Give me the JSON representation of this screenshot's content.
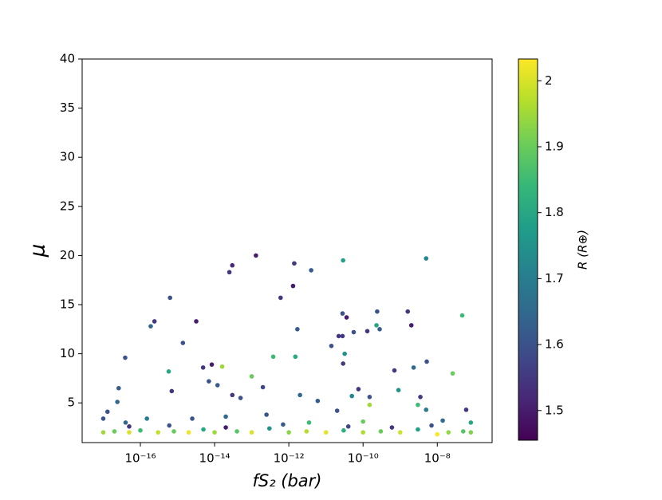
{
  "chart_data": {
    "type": "scatter",
    "xlabel": "fS₂ (bar)",
    "ylabel": "μ",
    "colorbar_label": "R (R⊕)",
    "x_scale": "log",
    "colormap": "viridis",
    "xlim": [
      2.7e-18,
      3e-07
    ],
    "ylim": [
      0.96,
      40
    ],
    "xticks": [
      {
        "value": 1e-16,
        "label": "10⁻¹⁶"
      },
      {
        "value": 1e-14,
        "label": "10⁻¹⁴"
      },
      {
        "value": 1e-12,
        "label": "10⁻¹²"
      },
      {
        "value": 1e-10,
        "label": "10⁻¹⁰"
      },
      {
        "value": 1e-08,
        "label": "10⁻⁸"
      }
    ],
    "yticks": [
      5,
      10,
      15,
      20,
      25,
      30,
      35,
      40
    ],
    "clim": [
      1.455,
      2.033
    ],
    "cticks": [
      1.5,
      1.6,
      1.7,
      1.8,
      1.9,
      2.0
    ],
    "x": [
      1.3e-13,
      3e-14,
      2.5e-14,
      1.4e-12,
      1.3e-12,
      2.9e-11,
      5e-09,
      4e-12,
      6e-13,
      6.3e-16,
      2.4e-16,
      1.9e-16,
      3.2e-15,
      1.4e-15,
      3.9e-17,
      5.8e-16,
      4.9e-15,
      8.4e-15,
      1.6e-14,
      1e-13,
      7e-16,
      2.6e-17,
      2.4e-17,
      1.3e-17,
      1.7e-12,
      3.8e-13,
      1.5e-12,
      2.8e-11,
      3.6e-11,
      2.2e-11,
      2.8e-11,
      5.6e-11,
      1.3e-10,
      2.4e-10,
      2.8e-10,
      2.3e-10,
      3.2e-11,
      2.9e-11,
      1.4e-11,
      1.6e-09,
      2e-09,
      7e-10,
      2.3e-09,
      5.2e-09,
      4.7e-08,
      2.6e-08,
      7e-15,
      1.2e-14,
      3e-14,
      5e-14,
      2e-13,
      2e-12,
      6e-12,
      7.5e-11,
      5e-11,
      1.5e-10,
      9e-10,
      3.5e-09,
      6e-08,
      5e-09,
      1e-10,
      2e-11,
      3.5e-12,
      2.5e-13,
      2e-14,
      2.5e-15,
      1.5e-16,
      4e-17,
      1e-17,
      1.4e-08,
      8e-08,
      3e-09,
      1.5e-10,
      1e-17,
      2e-17,
      5e-17,
      1e-16,
      3e-16,
      8e-16,
      2e-15,
      5e-15,
      1e-14,
      4e-14,
      1e-13,
      3e-13,
      1e-12,
      3e-12,
      1e-11,
      3e-11,
      1e-10,
      3e-10,
      1e-09,
      3e-09,
      1e-08,
      2e-08,
      5e-08,
      8e-08,
      5e-17,
      6e-16,
      2e-14,
      7e-13,
      4e-11,
      6e-10,
      7e-09
    ],
    "values": [
      20.0,
      19.0,
      18.3,
      19.2,
      16.9,
      19.5,
      19.7,
      18.5,
      15.7,
      15.7,
      13.3,
      12.8,
      13.3,
      11.1,
      9.6,
      8.2,
      8.6,
      8.9,
      8.7,
      7.7,
      6.2,
      6.5,
      5.1,
      4.1,
      12.5,
      9.7,
      9.7,
      14.1,
      13.7,
      11.8,
      11.8,
      12.2,
      12.3,
      14.3,
      12.5,
      12.9,
      10.0,
      9.0,
      10.8,
      14.3,
      12.9,
      8.3,
      8.6,
      9.2,
      13.9,
      8.0,
      7.2,
      6.8,
      5.8,
      5.5,
      6.6,
      5.8,
      5.2,
      6.4,
      5.7,
      5.6,
      6.3,
      5.6,
      4.3,
      4.3,
      3.1,
      4.2,
      3.0,
      3.8,
      3.6,
      3.4,
      3.4,
      3.0,
      3.4,
      3.2,
      3.0,
      4.8,
      4.8,
      2.0,
      2.1,
      2.0,
      2.2,
      2.0,
      2.1,
      2.0,
      2.3,
      2.0,
      2.1,
      2.0,
      2.4,
      2.0,
      2.1,
      2.0,
      2.2,
      2.0,
      2.1,
      2.0,
      2.3,
      1.8,
      2.0,
      2.1,
      2.0,
      2.6,
      2.7,
      2.5,
      2.8,
      2.6,
      2.5,
      2.7
    ],
    "color_values": [
      1.5,
      1.52,
      1.55,
      1.55,
      1.5,
      1.78,
      1.72,
      1.62,
      1.55,
      1.6,
      1.55,
      1.65,
      1.5,
      1.6,
      1.6,
      1.8,
      1.55,
      1.5,
      1.95,
      1.9,
      1.55,
      1.62,
      1.65,
      1.6,
      1.62,
      1.85,
      1.8,
      1.6,
      1.5,
      1.55,
      1.55,
      1.6,
      1.55,
      1.6,
      1.62,
      1.8,
      1.75,
      1.55,
      1.6,
      1.55,
      1.5,
      1.55,
      1.65,
      1.6,
      1.85,
      1.9,
      1.6,
      1.62,
      1.55,
      1.6,
      1.58,
      1.65,
      1.62,
      1.55,
      1.72,
      1.6,
      1.75,
      1.55,
      1.55,
      1.7,
      1.9,
      1.6,
      1.85,
      1.6,
      1.65,
      1.6,
      1.7,
      1.65,
      1.6,
      1.65,
      1.8,
      1.85,
      1.95,
      1.95,
      1.9,
      2.0,
      1.85,
      1.98,
      1.9,
      2.02,
      1.8,
      1.95,
      1.88,
      2.0,
      1.75,
      1.93,
      1.97,
      2.01,
      1.82,
      1.96,
      1.9,
      1.99,
      1.78,
      2.03,
      1.94,
      1.88,
      1.92,
      1.55,
      1.6,
      1.5,
      1.62,
      1.58,
      1.55,
      1.6
    ]
  }
}
